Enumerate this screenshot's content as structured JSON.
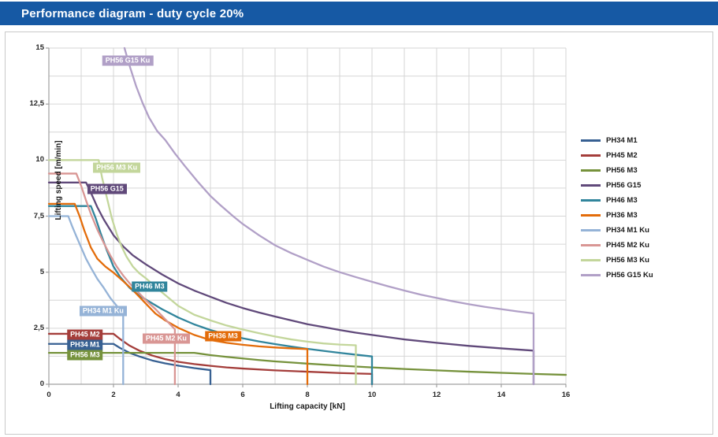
{
  "title": "Performance diagram - duty cycle 20%",
  "colors": {
    "banner": "#1659a4",
    "grid": "#d6d6d6",
    "axis": "#a0a0a0",
    "tick_text": "#262626"
  },
  "chart_data": {
    "type": "line",
    "title": "Performance diagram - duty cycle 20%",
    "xlabel": "Lifting capacity [kN]",
    "ylabel": "Lifting speed [m/min]",
    "xlim": [
      0,
      16
    ],
    "ylim": [
      0,
      15
    ],
    "x_minor_step": 1,
    "y_minor_step": 1.25,
    "grid": true,
    "legend_position": "right",
    "x_ticks": {
      "values": [
        0,
        2,
        4,
        6,
        8,
        10,
        12,
        14,
        16
      ],
      "labels": [
        "0",
        "2",
        "4",
        "6",
        "8",
        "10",
        "12",
        "14",
        "16"
      ]
    },
    "y_ticks": {
      "values": [
        0,
        2.5,
        5,
        7.5,
        10,
        12.5,
        15
      ],
      "labels": [
        "0",
        "2,5",
        "5",
        "7,5",
        "10",
        "12,5",
        "15"
      ]
    },
    "series": [
      {
        "name": "PH34 M1",
        "color": "#376092",
        "label_pos": [
          1.12,
          1.76
        ],
        "points": [
          [
            0,
            1.8
          ],
          [
            2,
            1.8
          ],
          [
            2.2,
            1.62
          ],
          [
            2.5,
            1.4
          ],
          [
            2.8,
            1.24
          ],
          [
            3.2,
            1.06
          ],
          [
            3.6,
            0.93
          ],
          [
            4,
            0.83
          ],
          [
            4.5,
            0.72
          ],
          [
            5,
            0.63
          ],
          [
            5,
            0
          ]
        ]
      },
      {
        "name": "PH45 M2",
        "color": "#a43d3a",
        "label_pos": [
          1.12,
          2.21
        ],
        "points": [
          [
            0,
            2.25
          ],
          [
            2,
            2.25
          ],
          [
            2.2,
            2.02
          ],
          [
            2.5,
            1.72
          ],
          [
            2.8,
            1.5
          ],
          [
            3.2,
            1.28
          ],
          [
            3.6,
            1.12
          ],
          [
            4,
            1.0
          ],
          [
            4.5,
            0.9
          ],
          [
            5,
            0.82
          ],
          [
            5.5,
            0.75
          ],
          [
            6,
            0.7
          ],
          [
            7,
            0.62
          ],
          [
            8,
            0.56
          ],
          [
            9,
            0.5
          ],
          [
            10,
            0.46
          ],
          [
            10,
            0
          ]
        ]
      },
      {
        "name": "PH56 M3",
        "color": "#76923c",
        "label_pos": [
          1.12,
          1.3
        ],
        "points": [
          [
            0,
            1.4
          ],
          [
            4.5,
            1.4
          ],
          [
            5,
            1.3
          ],
          [
            5.5,
            1.22
          ],
          [
            6,
            1.15
          ],
          [
            6.5,
            1.08
          ],
          [
            7,
            1.02
          ],
          [
            7.5,
            0.97
          ],
          [
            8,
            0.92
          ],
          [
            9,
            0.83
          ],
          [
            10,
            0.75
          ],
          [
            11,
            0.68
          ],
          [
            12,
            0.62
          ],
          [
            13,
            0.56
          ],
          [
            14,
            0.51
          ],
          [
            15,
            0.46
          ],
          [
            16,
            0.42
          ]
        ]
      },
      {
        "name": "PH56 G15",
        "color": "#60497a",
        "label_pos": [
          1.8,
          8.71
        ],
        "points": [
          [
            0,
            9.0
          ],
          [
            1.15,
            9.0
          ],
          [
            1.3,
            8.55
          ],
          [
            1.5,
            7.9
          ],
          [
            1.7,
            7.35
          ],
          [
            2,
            6.65
          ],
          [
            2.3,
            6.15
          ],
          [
            2.6,
            5.75
          ],
          [
            3,
            5.35
          ],
          [
            3.5,
            4.9
          ],
          [
            4,
            4.5
          ],
          [
            4.5,
            4.18
          ],
          [
            5,
            3.9
          ],
          [
            5.5,
            3.63
          ],
          [
            6,
            3.4
          ],
          [
            6.5,
            3.2
          ],
          [
            7,
            3.02
          ],
          [
            7.5,
            2.85
          ],
          [
            8,
            2.68
          ],
          [
            8.5,
            2.55
          ],
          [
            9,
            2.42
          ],
          [
            9.5,
            2.3
          ],
          [
            10,
            2.2
          ],
          [
            11,
            2.0
          ],
          [
            12,
            1.85
          ],
          [
            13,
            1.71
          ],
          [
            14,
            1.6
          ],
          [
            15,
            1.5
          ],
          [
            15,
            0
          ]
        ]
      },
      {
        "name": "PH46 M3",
        "color": "#31859c",
        "label_pos": [
          3.12,
          4.36
        ],
        "points": [
          [
            0,
            7.95
          ],
          [
            1.3,
            7.95
          ],
          [
            1.45,
            7.4
          ],
          [
            1.6,
            6.75
          ],
          [
            1.8,
            5.95
          ],
          [
            2,
            5.25
          ],
          [
            2.2,
            4.8
          ],
          [
            2.5,
            4.3
          ],
          [
            2.8,
            3.95
          ],
          [
            3,
            3.78
          ],
          [
            3.5,
            3.35
          ],
          [
            4,
            2.98
          ],
          [
            4.5,
            2.67
          ],
          [
            5,
            2.42
          ],
          [
            5.5,
            2.22
          ],
          [
            6,
            2.05
          ],
          [
            6.5,
            1.91
          ],
          [
            7,
            1.79
          ],
          [
            7.5,
            1.68
          ],
          [
            8,
            1.58
          ],
          [
            8.5,
            1.49
          ],
          [
            9,
            1.4
          ],
          [
            9.5,
            1.32
          ],
          [
            10,
            1.24
          ],
          [
            10,
            0
          ]
        ]
      },
      {
        "name": "PH36 M3",
        "color": "#e36c0a",
        "label_pos": [
          5.39,
          2.14
        ],
        "points": [
          [
            0,
            8.05
          ],
          [
            0.8,
            8.05
          ],
          [
            0.95,
            7.5
          ],
          [
            1.1,
            6.85
          ],
          [
            1.3,
            6.1
          ],
          [
            1.5,
            5.6
          ],
          [
            1.75,
            5.25
          ],
          [
            2,
            4.98
          ],
          [
            2.3,
            4.6
          ],
          [
            2.6,
            4.2
          ],
          [
            3,
            3.6
          ],
          [
            3.3,
            3.15
          ],
          [
            3.6,
            2.85
          ],
          [
            4,
            2.52
          ],
          [
            4.5,
            2.2
          ],
          [
            5,
            1.97
          ],
          [
            5.5,
            1.85
          ],
          [
            6,
            1.76
          ],
          [
            6.5,
            1.69
          ],
          [
            7,
            1.64
          ],
          [
            7.5,
            1.6
          ],
          [
            8,
            1.57
          ],
          [
            8,
            0
          ]
        ]
      },
      {
        "name": "PH34 M1 Ku",
        "color": "#95b3d7",
        "label_pos": [
          1.68,
          3.27
        ],
        "points": [
          [
            0,
            7.5
          ],
          [
            0.6,
            7.5
          ],
          [
            0.72,
            7.05
          ],
          [
            0.85,
            6.6
          ],
          [
            1,
            6.1
          ],
          [
            1.15,
            5.6
          ],
          [
            1.3,
            5.2
          ],
          [
            1.5,
            4.7
          ],
          [
            1.7,
            4.3
          ],
          [
            1.9,
            3.85
          ],
          [
            2.1,
            3.5
          ],
          [
            2.3,
            3.15
          ],
          [
            2.3,
            0
          ]
        ]
      },
      {
        "name": "PH45 M2 Ku",
        "color": "#d99694",
        "label_pos": [
          3.63,
          2.04
        ],
        "points": [
          [
            0,
            9.4
          ],
          [
            0.85,
            9.4
          ],
          [
            1,
            8.85
          ],
          [
            1.15,
            8.2
          ],
          [
            1.3,
            7.6
          ],
          [
            1.5,
            6.9
          ],
          [
            1.7,
            6.3
          ],
          [
            1.9,
            5.75
          ],
          [
            2.1,
            5.25
          ],
          [
            2.3,
            4.85
          ],
          [
            2.5,
            4.5
          ],
          [
            2.8,
            4.05
          ],
          [
            3,
            3.75
          ],
          [
            3.3,
            3.35
          ],
          [
            3.6,
            2.9
          ],
          [
            3.9,
            2.45
          ],
          [
            3.9,
            0
          ]
        ]
      },
      {
        "name": "PH56 M3 Ku",
        "color": "#c3d69b",
        "label_pos": [
          2.1,
          9.66
        ],
        "points": [
          [
            0,
            10
          ],
          [
            1.54,
            10
          ],
          [
            1.65,
            9.2
          ],
          [
            1.8,
            8.3
          ],
          [
            1.95,
            7.4
          ],
          [
            2.1,
            6.7
          ],
          [
            2.25,
            6.15
          ],
          [
            2.4,
            5.7
          ],
          [
            2.6,
            5.25
          ],
          [
            2.8,
            4.95
          ],
          [
            3,
            4.73
          ],
          [
            3.5,
            4.1
          ],
          [
            4,
            3.5
          ],
          [
            4.5,
            3.1
          ],
          [
            5,
            2.85
          ],
          [
            5.5,
            2.62
          ],
          [
            6,
            2.44
          ],
          [
            6.5,
            2.28
          ],
          [
            7,
            2.13
          ],
          [
            7.5,
            2.0
          ],
          [
            8,
            1.9
          ],
          [
            8.5,
            1.82
          ],
          [
            9,
            1.77
          ],
          [
            9.5,
            1.74
          ],
          [
            9.5,
            0
          ]
        ]
      },
      {
        "name": "PH56 G15 Ku",
        "color": "#b1a0c7",
        "label_pos": [
          2.44,
          14.43
        ],
        "points": [
          [
            2.34,
            15
          ],
          [
            2.5,
            14.2
          ],
          [
            2.7,
            13.3
          ],
          [
            2.9,
            12.55
          ],
          [
            3.1,
            11.9
          ],
          [
            3.35,
            11.3
          ],
          [
            3.6,
            10.9
          ],
          [
            3.9,
            10.3
          ],
          [
            4.2,
            9.75
          ],
          [
            4.6,
            9.05
          ],
          [
            5,
            8.4
          ],
          [
            5.3,
            8.0
          ],
          [
            5.7,
            7.5
          ],
          [
            6,
            7.15
          ],
          [
            6.5,
            6.65
          ],
          [
            7,
            6.2
          ],
          [
            7.5,
            5.85
          ],
          [
            8,
            5.55
          ],
          [
            8.5,
            5.25
          ],
          [
            9,
            5.0
          ],
          [
            9.5,
            4.78
          ],
          [
            10,
            4.57
          ],
          [
            10.5,
            4.37
          ],
          [
            11,
            4.18
          ],
          [
            11.5,
            4.0
          ],
          [
            12,
            3.85
          ],
          [
            12.5,
            3.7
          ],
          [
            13,
            3.57
          ],
          [
            13.5,
            3.45
          ],
          [
            14,
            3.35
          ],
          [
            14.5,
            3.25
          ],
          [
            15,
            3.16
          ],
          [
            15,
            0
          ]
        ]
      }
    ]
  }
}
